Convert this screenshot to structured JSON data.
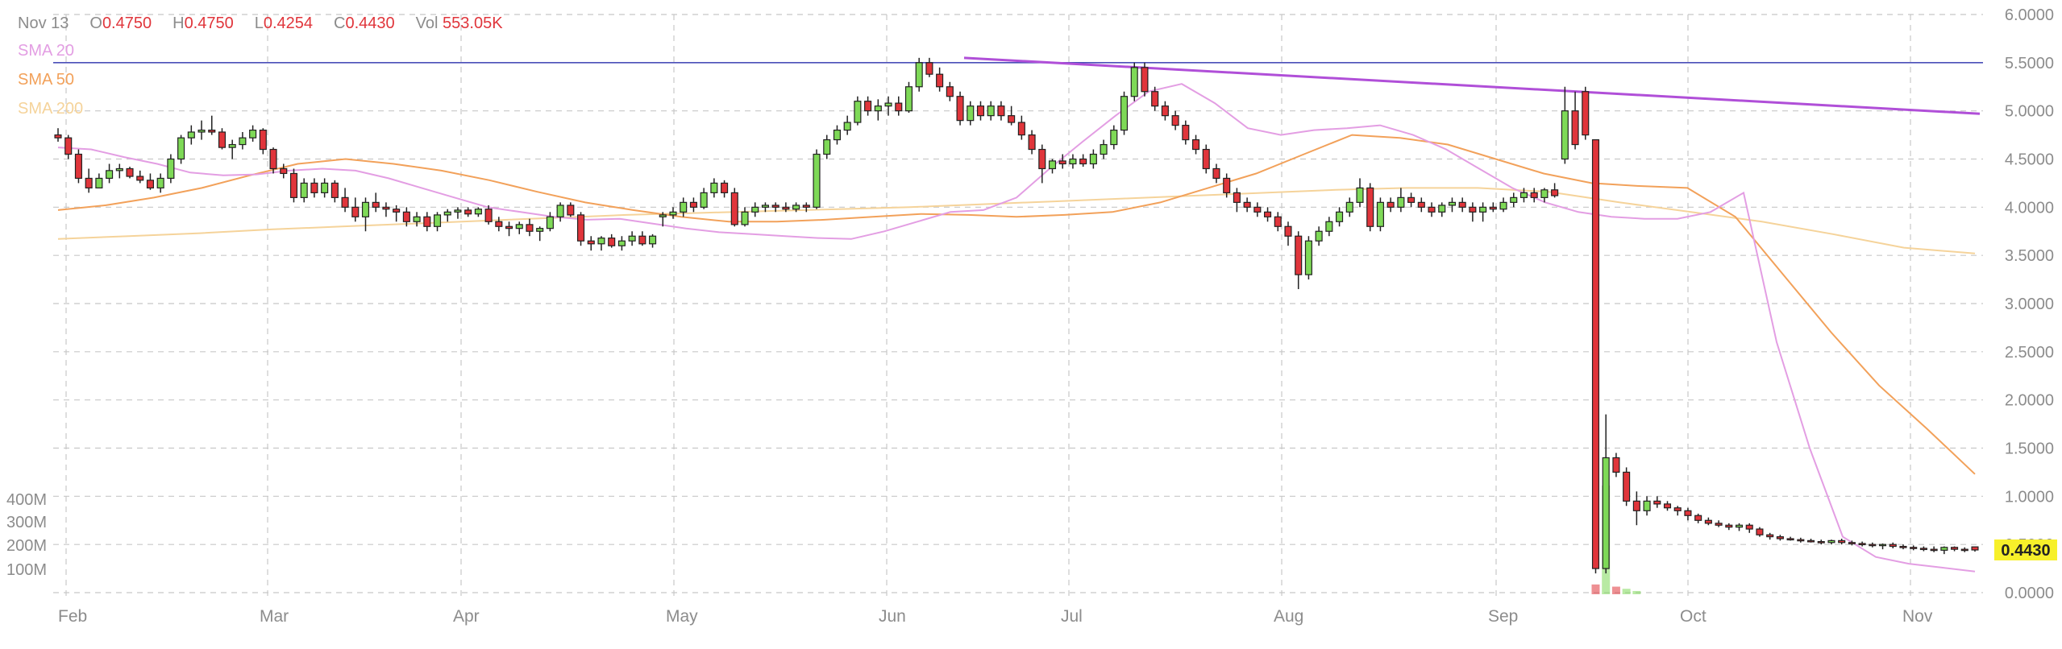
{
  "header": {
    "date": "Nov 13",
    "open_label": "O",
    "open": "0.4750",
    "high_label": "H",
    "high": "0.4750",
    "low_label": "L",
    "low": "0.4254",
    "close_label": "C",
    "close": "0.4430",
    "vol_label": "Vol",
    "vol": "553.05K"
  },
  "legend": {
    "sma20": "SMA 20",
    "sma50": "SMA 50",
    "sma200": "SMA 200"
  },
  "last_price_label": "0.4430",
  "colors": {
    "up": "#7ed957",
    "down": "#e0353b",
    "sma20": "#e39ee3",
    "sma50": "#f2a15a",
    "sma200": "#f5d39a",
    "trendline": "#b04fd8",
    "hline": "#4a4fb8",
    "price_badge": "#f7f02a",
    "grid": "#c8c8c8",
    "text": "#8c8c8c"
  },
  "chart_data": {
    "type": "candlestick",
    "title": "",
    "y_axis": {
      "ticks": [
        "6.0000",
        "5.5000",
        "5.0000",
        "4.5000",
        "4.0000",
        "3.5000",
        "3.0000",
        "2.5000",
        "2.0000",
        "1.5000",
        "1.0000",
        "0.5000",
        "0.0000"
      ],
      "range": [
        0,
        6
      ],
      "side": "right"
    },
    "volume_axis": {
      "ticks": [
        "400M",
        "300M",
        "200M",
        "100M"
      ]
    },
    "x_axis": {
      "ticks": [
        "Feb",
        "Mar",
        "Apr",
        "May",
        "Jun",
        "Jul",
        "Aug",
        "Sep",
        "Oct",
        "Nov"
      ]
    },
    "grid": true,
    "annotations": {
      "horizontal_line": 5.5,
      "trendline": {
        "from": [
          "Jun 15",
          5.55
        ],
        "to": [
          "Nov 20",
          4.97
        ]
      }
    },
    "sma20": [
      4.62,
      4.6,
      4.52,
      4.45,
      4.36,
      4.33,
      4.34,
      4.38,
      4.4,
      4.38,
      4.3,
      4.2,
      4.1,
      4.0,
      3.95,
      3.9,
      3.87,
      3.88,
      3.83,
      3.78,
      3.74,
      3.72,
      3.7,
      3.68,
      3.67,
      3.75,
      3.85,
      3.95,
      3.97,
      4.1,
      4.4,
      4.68,
      4.95,
      5.2,
      5.28,
      5.08,
      4.82,
      4.75,
      4.8,
      4.82,
      4.85,
      4.75,
      4.6,
      4.4,
      4.2,
      4.05,
      3.95,
      3.9,
      3.88,
      3.88,
      3.95,
      4.15,
      2.6,
      1.5,
      0.58,
      0.37,
      0.3,
      0.26,
      0.22
    ],
    "sma50": [
      3.97,
      4.02,
      4.1,
      4.2,
      4.33,
      4.45,
      4.5,
      4.45,
      4.38,
      4.28,
      4.16,
      4.05,
      3.97,
      3.9,
      3.85,
      3.85,
      3.87,
      3.9,
      3.93,
      3.92,
      3.9,
      3.92,
      3.95,
      4.05,
      4.2,
      4.35,
      4.55,
      4.75,
      4.72,
      4.65,
      4.5,
      4.35,
      4.25,
      4.22,
      4.2,
      3.9,
      3.3,
      2.7,
      2.15,
      1.7,
      1.23
    ],
    "sma200": [
      3.67,
      3.7,
      3.73,
      3.77,
      3.8,
      3.83,
      3.86,
      3.89,
      3.92,
      3.94,
      3.96,
      3.98,
      4.0,
      4.03,
      4.06,
      4.09,
      4.12,
      4.15,
      4.18,
      4.2,
      4.2,
      4.16,
      4.05,
      3.95,
      3.85,
      3.72,
      3.58,
      3.52
    ],
    "candles": [
      [
        4.75,
        4.82,
        4.68,
        4.72
      ],
      [
        4.72,
        4.75,
        4.5,
        4.55
      ],
      [
        4.55,
        4.6,
        4.25,
        4.3
      ],
      [
        4.3,
        4.4,
        4.15,
        4.2
      ],
      [
        4.2,
        4.35,
        4.2,
        4.3
      ],
      [
        4.3,
        4.45,
        4.25,
        4.38
      ],
      [
        4.38,
        4.45,
        4.3,
        4.4
      ],
      [
        4.4,
        4.42,
        4.3,
        4.32
      ],
      [
        4.32,
        4.38,
        4.25,
        4.28
      ],
      [
        4.28,
        4.35,
        4.18,
        4.2
      ],
      [
        4.2,
        4.35,
        4.15,
        4.3
      ],
      [
        4.3,
        4.55,
        4.25,
        4.5
      ],
      [
        4.5,
        4.75,
        4.45,
        4.72
      ],
      [
        4.72,
        4.85,
        4.65,
        4.78
      ],
      [
        4.78,
        4.9,
        4.7,
        4.8
      ],
      [
        4.8,
        4.95,
        4.75,
        4.78
      ],
      [
        4.78,
        4.82,
        4.6,
        4.62
      ],
      [
        4.62,
        4.7,
        4.5,
        4.65
      ],
      [
        4.65,
        4.78,
        4.6,
        4.72
      ],
      [
        4.72,
        4.85,
        4.68,
        4.8
      ],
      [
        4.8,
        4.82,
        4.55,
        4.6
      ],
      [
        4.6,
        4.62,
        4.35,
        4.4
      ],
      [
        4.4,
        4.45,
        4.3,
        4.35
      ],
      [
        4.35,
        4.4,
        4.05,
        4.1
      ],
      [
        4.1,
        4.3,
        4.05,
        4.25
      ],
      [
        4.25,
        4.3,
        4.1,
        4.15
      ],
      [
        4.15,
        4.3,
        4.1,
        4.25
      ],
      [
        4.25,
        4.28,
        4.05,
        4.1
      ],
      [
        4.1,
        4.2,
        3.95,
        4.0
      ],
      [
        4.0,
        4.1,
        3.85,
        3.9
      ],
      [
        3.9,
        4.1,
        3.75,
        4.05
      ],
      [
        4.05,
        4.15,
        3.95,
        4.0
      ],
      [
        4.0,
        4.05,
        3.9,
        3.98
      ],
      [
        3.98,
        4.02,
        3.85,
        3.95
      ],
      [
        3.95,
        4.0,
        3.8,
        3.85
      ],
      [
        3.85,
        3.95,
        3.8,
        3.9
      ],
      [
        3.9,
        3.95,
        3.75,
        3.8
      ],
      [
        3.8,
        3.95,
        3.75,
        3.92
      ],
      [
        3.92,
        3.98,
        3.85,
        3.95
      ],
      [
        3.95,
        4.0,
        3.88,
        3.97
      ],
      [
        3.97,
        4.0,
        3.9,
        3.93
      ],
      [
        3.93,
        4.0,
        3.9,
        3.98
      ],
      [
        3.98,
        4.02,
        3.82,
        3.85
      ],
      [
        3.85,
        3.9,
        3.75,
        3.8
      ],
      [
        3.8,
        3.85,
        3.7,
        3.78
      ],
      [
        3.78,
        3.85,
        3.72,
        3.82
      ],
      [
        3.82,
        3.88,
        3.7,
        3.75
      ],
      [
        3.75,
        3.8,
        3.65,
        3.78
      ],
      [
        3.78,
        3.95,
        3.75,
        3.9
      ],
      [
        3.9,
        4.05,
        3.85,
        4.02
      ],
      [
        4.02,
        4.05,
        3.9,
        3.92
      ],
      [
        3.92,
        3.95,
        3.6,
        3.65
      ],
      [
        3.65,
        3.7,
        3.55,
        3.62
      ],
      [
        3.62,
        3.7,
        3.55,
        3.68
      ],
      [
        3.68,
        3.72,
        3.58,
        3.6
      ],
      [
        3.6,
        3.7,
        3.55,
        3.65
      ],
      [
        3.65,
        3.75,
        3.6,
        3.7
      ],
      [
        3.7,
        3.75,
        3.6,
        3.62
      ],
      [
        3.62,
        3.72,
        3.58,
        3.7
      ]
    ],
    "candles_mid": [
      [
        3.9,
        3.95,
        3.8,
        3.92
      ],
      [
        3.92,
        4.0,
        3.88,
        3.95
      ],
      [
        3.95,
        4.1,
        3.9,
        4.05
      ],
      [
        4.05,
        4.1,
        3.95,
        4.0
      ],
      [
        4.0,
        4.2,
        3.98,
        4.15
      ],
      [
        4.15,
        4.3,
        4.1,
        4.25
      ],
      [
        4.25,
        4.28,
        4.1,
        4.15
      ],
      [
        4.15,
        4.2,
        3.8,
        3.82
      ],
      [
        3.82,
        4.0,
        3.8,
        3.95
      ],
      [
        3.95,
        4.05,
        3.9,
        4.0
      ],
      [
        4.0,
        4.05,
        3.95,
        4.02
      ],
      [
        4.02,
        4.05,
        3.95,
        4.0
      ],
      [
        4.0,
        4.05,
        3.95,
        3.98
      ],
      [
        3.98,
        4.05,
        3.95,
        4.02
      ],
      [
        4.02,
        4.05,
        3.95,
        4.0
      ],
      [
        4.0,
        4.6,
        3.98,
        4.55
      ],
      [
        4.55,
        4.75,
        4.5,
        4.7
      ],
      [
        4.7,
        4.85,
        4.65,
        4.8
      ],
      [
        4.8,
        4.95,
        4.75,
        4.88
      ],
      [
        4.88,
        5.15,
        4.85,
        5.1
      ],
      [
        5.1,
        5.15,
        4.95,
        5.0
      ],
      [
        5.0,
        5.12,
        4.9,
        5.05
      ],
      [
        5.05,
        5.15,
        4.95,
        5.08
      ],
      [
        5.08,
        5.15,
        4.95,
        5.0
      ],
      [
        5.0,
        5.3,
        4.98,
        5.25
      ],
      [
        5.25,
        5.55,
        5.2,
        5.5
      ],
      [
        5.5,
        5.55,
        5.35,
        5.38
      ],
      [
        5.38,
        5.45,
        5.2,
        5.25
      ],
      [
        5.25,
        5.3,
        5.1,
        5.15
      ],
      [
        5.15,
        5.2,
        4.85,
        4.9
      ],
      [
        4.9,
        5.1,
        4.85,
        5.05
      ],
      [
        5.05,
        5.1,
        4.9,
        4.95
      ],
      [
        4.95,
        5.1,
        4.9,
        5.05
      ],
      [
        5.05,
        5.1,
        4.9,
        4.95
      ],
      [
        4.95,
        5.05,
        4.85,
        4.88
      ],
      [
        4.88,
        4.95,
        4.7,
        4.75
      ],
      [
        4.75,
        4.8,
        4.55,
        4.6
      ],
      [
        4.6,
        4.65,
        4.25,
        4.4
      ],
      [
        4.4,
        4.5,
        4.35,
        4.48
      ],
      [
        4.48,
        4.55,
        4.4,
        4.45
      ],
      [
        4.45,
        4.55,
        4.4,
        4.5
      ],
      [
        4.5,
        4.55,
        4.42,
        4.45
      ],
      [
        4.45,
        4.6,
        4.4,
        4.55
      ],
      [
        4.55,
        4.7,
        4.5,
        4.65
      ],
      [
        4.65,
        4.85,
        4.6,
        4.8
      ],
      [
        4.8,
        5.2,
        4.75,
        5.15
      ],
      [
        5.15,
        5.5,
        5.1,
        5.45
      ],
      [
        5.45,
        5.5,
        5.15,
        5.2
      ],
      [
        5.2,
        5.25,
        5.0,
        5.05
      ],
      [
        5.05,
        5.1,
        4.9,
        4.95
      ],
      [
        4.95,
        5.0,
        4.8,
        4.85
      ],
      [
        4.85,
        4.9,
        4.65,
        4.7
      ],
      [
        4.7,
        4.75,
        4.55,
        4.6
      ],
      [
        4.6,
        4.65,
        4.35,
        4.4
      ],
      [
        4.4,
        4.45,
        4.25,
        4.3
      ],
      [
        4.3,
        4.35,
        4.1,
        4.15
      ]
    ],
    "candles_late": [
      [
        4.15,
        4.2,
        3.95,
        4.05
      ],
      [
        4.05,
        4.1,
        3.95,
        4.0
      ],
      [
        4.0,
        4.05,
        3.9,
        3.95
      ],
      [
        3.95,
        4.0,
        3.85,
        3.9
      ],
      [
        3.9,
        3.95,
        3.75,
        3.8
      ],
      [
        3.8,
        3.85,
        3.6,
        3.7
      ],
      [
        3.7,
        3.75,
        3.15,
        3.3
      ],
      [
        3.3,
        3.7,
        3.25,
        3.65
      ],
      [
        3.65,
        3.8,
        3.6,
        3.75
      ],
      [
        3.75,
        3.9,
        3.7,
        3.85
      ],
      [
        3.85,
        4.0,
        3.8,
        3.95
      ],
      [
        3.95,
        4.1,
        3.9,
        4.05
      ],
      [
        4.05,
        4.3,
        4.0,
        4.2
      ],
      [
        4.2,
        4.25,
        3.75,
        3.8
      ],
      [
        3.8,
        4.1,
        3.75,
        4.05
      ],
      [
        4.05,
        4.1,
        3.95,
        4.0
      ],
      [
        4.0,
        4.2,
        3.95,
        4.1
      ],
      [
        4.1,
        4.15,
        4.0,
        4.05
      ],
      [
        4.05,
        4.1,
        3.95,
        4.0
      ],
      [
        4.0,
        4.05,
        3.9,
        3.95
      ],
      [
        3.95,
        4.05,
        3.9,
        4.02
      ],
      [
        4.02,
        4.1,
        3.95,
        4.05
      ],
      [
        4.05,
        4.1,
        3.95,
        4.0
      ],
      [
        4.0,
        4.05,
        3.85,
        3.95
      ],
      [
        3.95,
        4.05,
        3.85,
        4.0
      ],
      [
        4.0,
        4.05,
        3.95,
        3.98
      ],
      [
        3.98,
        4.1,
        3.95,
        4.05
      ],
      [
        4.05,
        4.15,
        4.0,
        4.1
      ],
      [
        4.1,
        4.2,
        4.05,
        4.15
      ],
      [
        4.15,
        4.2,
        4.05,
        4.1
      ],
      [
        4.1,
        4.2,
        4.05,
        4.18
      ],
      [
        4.18,
        4.25,
        4.1,
        4.12
      ]
    ],
    "candles_crash": [
      [
        4.5,
        5.25,
        4.45,
        5.0
      ],
      [
        5.0,
        5.2,
        4.6,
        4.65
      ],
      [
        5.2,
        5.25,
        4.7,
        4.75
      ],
      [
        4.7,
        4.7,
        0.2,
        0.25
      ],
      [
        0.25,
        1.85,
        0.2,
        1.4
      ],
      [
        1.4,
        1.45,
        1.2,
        1.25
      ],
      [
        1.25,
        1.3,
        0.9,
        0.95
      ],
      [
        0.95,
        1.05,
        0.7,
        0.85
      ],
      [
        0.85,
        1.0,
        0.8,
        0.95
      ],
      [
        0.95,
        1.0,
        0.88,
        0.92
      ],
      [
        0.92,
        0.95,
        0.85,
        0.88
      ],
      [
        0.88,
        0.9,
        0.8,
        0.85
      ],
      [
        0.85,
        0.88,
        0.75,
        0.8
      ],
      [
        0.8,
        0.82,
        0.72,
        0.75
      ],
      [
        0.75,
        0.78,
        0.7,
        0.72
      ],
      [
        0.72,
        0.75,
        0.68,
        0.7
      ],
      [
        0.7,
        0.72,
        0.65,
        0.68
      ],
      [
        0.68,
        0.72,
        0.64,
        0.7
      ],
      [
        0.7,
        0.72,
        0.62,
        0.66
      ],
      [
        0.66,
        0.68,
        0.58,
        0.6
      ],
      [
        0.6,
        0.62,
        0.55,
        0.58
      ],
      [
        0.58,
        0.6,
        0.54,
        0.56
      ],
      [
        0.56,
        0.58,
        0.54,
        0.55
      ],
      [
        0.55,
        0.57,
        0.52,
        0.54
      ],
      [
        0.54,
        0.56,
        0.52,
        0.53
      ],
      [
        0.53,
        0.55,
        0.5,
        0.52
      ],
      [
        0.52,
        0.55,
        0.5,
        0.54
      ],
      [
        0.54,
        0.56,
        0.5,
        0.52
      ],
      [
        0.52,
        0.54,
        0.49,
        0.51
      ],
      [
        0.51,
        0.53,
        0.48,
        0.5
      ],
      [
        0.5,
        0.52,
        0.47,
        0.49
      ],
      [
        0.49,
        0.51,
        0.45,
        0.5
      ],
      [
        0.5,
        0.52,
        0.46,
        0.48
      ],
      [
        0.48,
        0.5,
        0.45,
        0.47
      ],
      [
        0.47,
        0.49,
        0.44,
        0.46
      ],
      [
        0.46,
        0.48,
        0.43,
        0.45
      ],
      [
        0.45,
        0.48,
        0.42,
        0.44
      ],
      [
        0.44,
        0.48,
        0.4,
        0.47
      ],
      [
        0.47,
        0.48,
        0.43,
        0.45
      ],
      [
        0.45,
        0.47,
        0.42,
        0.44
      ],
      [
        0.475,
        0.475,
        0.4254,
        0.443
      ]
    ]
  }
}
